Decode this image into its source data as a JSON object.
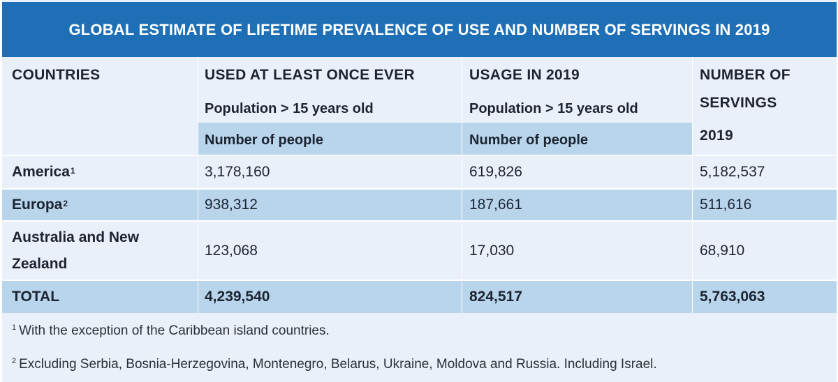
{
  "title": "GLOBAL ESTIMATE OF LIFETIME PREVALENCE OF USE AND NUMBER OF SERVINGS IN 2019",
  "headers": {
    "countries": "COUNTRIES",
    "col2_main": "USED AT LEAST ONCE EVER",
    "col2_sub": "Population > 15 years old",
    "col2_unit": "Number of people",
    "col3_main": "USAGE IN 2019",
    "col3_sub": "Population > 15 years old",
    "col3_unit": "Number of people",
    "col4_main_line1": "NUMBER OF",
    "col4_main_line2": "SERVINGS",
    "col4_year": "2019"
  },
  "rows": [
    {
      "country": "America",
      "sup": "1",
      "used_ever": "3,178,160",
      "usage_2019": "619,826",
      "servings": "5,182,537"
    },
    {
      "country": "Europa",
      "sup": "2",
      "used_ever": "938,312",
      "usage_2019": "187,661",
      "servings": "511,616"
    },
    {
      "country_line1": "Australia and New",
      "country_line2": "Zealand",
      "used_ever": "123,068",
      "usage_2019": "17,030",
      "servings": "68,910"
    }
  ],
  "total": {
    "label": "TOTAL",
    "used_ever": "4,239,540",
    "usage_2019": "824,517",
    "servings": "5,763,063"
  },
  "footnotes": [
    {
      "mark": "1",
      "text": "With the exception of the Caribbean island countries."
    },
    {
      "mark": "2",
      "text": "Excluding Serbia, Bosnia-Herzegovina, Montenegro, Belarus, Ukraine, Moldova and Russia. Including Israel."
    }
  ],
  "colors": {
    "title_bg": "#1e6fb6",
    "band": "#b8d5ec",
    "body_bg": "#e9f0f9"
  }
}
